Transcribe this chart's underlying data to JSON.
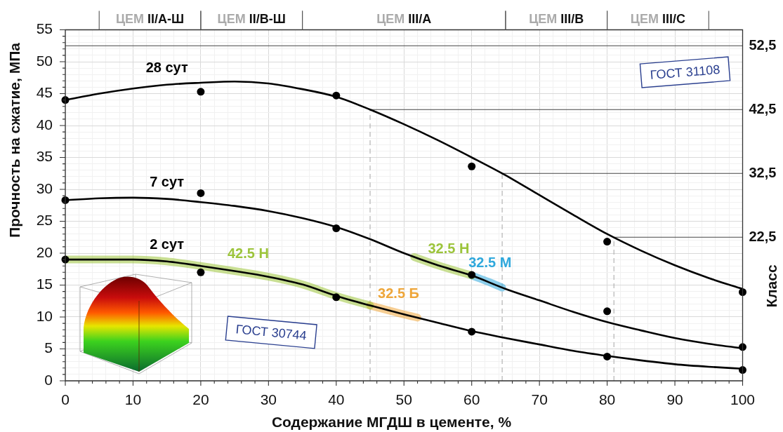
{
  "chart_data": {
    "type": "line",
    "xlabel": "Содержание МГДШ в цементе, %",
    "ylabel": "Прочность на сжатие, МПа",
    "y2label": "Класс",
    "xlim": [
      0,
      100
    ],
    "xticks": [
      0,
      {
        "value": 2,
        "label": null
      },
      {
        "value": 4,
        "label": null
      },
      {
        "value": 6,
        "label": null
      },
      {
        "value": 8,
        "label": null
      },
      10,
      {
        "value": 12,
        "label": null
      },
      {
        "value": 14,
        "label": null
      },
      {
        "value": 16,
        "label": null
      },
      {
        "value": 18,
        "label": null
      },
      20,
      {
        "value": 22,
        "label": null
      },
      {
        "value": 24,
        "label": null
      },
      {
        "value": 26,
        "label": null
      },
      {
        "value": 28,
        "label": null
      },
      30,
      {
        "value": 32,
        "label": null
      },
      {
        "value": 34,
        "label": null
      },
      {
        "value": 36,
        "label": null
      },
      {
        "value": 38,
        "label": null
      },
      40,
      {
        "value": 42,
        "label": null
      },
      {
        "value": 44,
        "label": null
      },
      {
        "value": 46,
        "label": null
      },
      {
        "value": 48,
        "label": null
      },
      50,
      {
        "value": 52,
        "label": null
      },
      {
        "value": 54,
        "label": null
      },
      {
        "value": 56,
        "label": null
      },
      {
        "value": 58,
        "label": null
      },
      60,
      {
        "value": 62,
        "label": null
      },
      {
        "value": 64,
        "label": null
      },
      {
        "value": 66,
        "label": null
      },
      {
        "value": 68,
        "label": null
      },
      70,
      {
        "value": 72,
        "label": null
      },
      {
        "value": 74,
        "label": null
      },
      {
        "value": 76,
        "label": null
      },
      {
        "value": 78,
        "label": null
      },
      80,
      {
        "value": 82,
        "label": null
      },
      {
        "value": 84,
        "label": null
      },
      {
        "value": 86,
        "label": null
      },
      {
        "value": 88,
        "label": null
      },
      90,
      {
        "value": 92,
        "label": null
      },
      {
        "value": 94,
        "label": null
      },
      {
        "value": 96,
        "label": null
      },
      {
        "value": 98,
        "label": null
      },
      100
    ],
    "ylim": [
      0,
      55
    ],
    "yticks": [
      0,
      {
        "value": 1,
        "label": null
      },
      {
        "value": 2,
        "label": null
      },
      {
        "value": 3,
        "label": null
      },
      {
        "value": 4,
        "label": null
      },
      5,
      {
        "value": 6,
        "label": null
      },
      {
        "value": 7,
        "label": null
      },
      {
        "value": 8,
        "label": null
      },
      {
        "value": 9,
        "label": null
      },
      10,
      {
        "value": 11,
        "label": null
      },
      {
        "value": 12,
        "label": null
      },
      {
        "value": 13,
        "label": null
      },
      {
        "value": 14,
        "label": null
      },
      15,
      {
        "value": 16,
        "label": null
      },
      {
        "value": 17,
        "label": null
      },
      {
        "value": 18,
        "label": null
      },
      {
        "value": 19,
        "label": null
      },
      20,
      {
        "value": 21,
        "label": null
      },
      {
        "value": 22,
        "label": null
      },
      {
        "value": 23,
        "label": null
      },
      {
        "value": 24,
        "label": null
      },
      25,
      {
        "value": 26,
        "label": null
      },
      {
        "value": 27,
        "label": null
      },
      {
        "value": 28,
        "label": null
      },
      {
        "value": 29,
        "label": null
      },
      30,
      {
        "value": 31,
        "label": null
      },
      {
        "value": 32,
        "label": null
      },
      {
        "value": 33,
        "label": null
      },
      {
        "value": 34,
        "label": null
      },
      35,
      {
        "value": 36,
        "label": null
      },
      {
        "value": 37,
        "label": null
      },
      {
        "value": 38,
        "label": null
      },
      {
        "value": 39,
        "label": null
      },
      40,
      {
        "value": 41,
        "label": null
      },
      {
        "value": 42,
        "label": null
      },
      {
        "value": 43,
        "label": null
      },
      {
        "value": 44,
        "label": null
      },
      45,
      {
        "value": 46,
        "label": null
      },
      {
        "value": 47,
        "label": null
      },
      {
        "value": 48,
        "label": null
      },
      {
        "value": 49,
        "label": null
      },
      50,
      {
        "value": 51,
        "label": null
      },
      {
        "value": 52,
        "label": null
      },
      {
        "value": 53,
        "label": null
      },
      {
        "value": 54,
        "label": null
      },
      55
    ],
    "y2lim": [
      0,
      55
    ],
    "y2ticks": [
      {
        "value": 22.5,
        "label": "22,5"
      },
      {
        "value": 32.5,
        "label": "32,5"
      },
      {
        "value": 42.5,
        "label": "42,5"
      },
      {
        "value": 52.5,
        "label": "52,5"
      }
    ],
    "grid": true,
    "line_style": "solid",
    "series": [
      {
        "type": "scatter",
        "marker": "circle",
        "color": "#000000",
        "x": [
          0,
          20,
          40,
          60,
          80,
          100
        ],
        "values": [
          44.0,
          45.3,
          44.7,
          33.6,
          21.8,
          13.9
        ]
      },
      {
        "name": "28 сут",
        "color": "#000000",
        "x": [
          0,
          5,
          10,
          15,
          20,
          25,
          30,
          35,
          40,
          45,
          50,
          55,
          60,
          65,
          70,
          75,
          80,
          85,
          90,
          95,
          100
        ],
        "values": [
          44.0,
          45.0,
          45.8,
          46.4,
          46.7,
          46.9,
          46.6,
          45.7,
          44.5,
          42.5,
          40.2,
          37.7,
          35.0,
          32.2,
          29.1,
          26.0,
          23.0,
          20.4,
          18.1,
          16.1,
          14.4
        ]
      },
      {
        "type": "scatter",
        "marker": "circle",
        "color": "#000000",
        "x": [
          0,
          20,
          40,
          60,
          80,
          100
        ],
        "values": [
          28.3,
          29.4,
          23.9,
          16.6,
          10.9,
          5.3
        ]
      },
      {
        "name": "7 сут",
        "color": "#000000",
        "x": [
          0,
          5,
          10,
          15,
          20,
          25,
          30,
          35,
          40,
          45,
          50,
          55,
          60,
          65,
          70,
          75,
          80,
          85,
          90,
          95,
          100
        ],
        "values": [
          28.3,
          28.6,
          28.7,
          28.5,
          28.0,
          27.4,
          26.6,
          25.5,
          24.1,
          22.2,
          20.0,
          18.1,
          16.5,
          14.4,
          12.6,
          10.8,
          9.2,
          7.9,
          6.7,
          5.8,
          5.1
        ]
      },
      {
        "type": "scatter",
        "marker": "circle",
        "color": "#000000",
        "x": [
          0,
          20,
          40,
          60,
          80,
          100
        ],
        "values": [
          19.0,
          17.0,
          13.1,
          7.7,
          3.8,
          1.7
        ]
      },
      {
        "name": "2 сут",
        "color": "#000000",
        "x": [
          0,
          5,
          10,
          15,
          20,
          25,
          30,
          35,
          40,
          45,
          50,
          55,
          60,
          65,
          70,
          75,
          80,
          85,
          90,
          95,
          100
        ],
        "values": [
          19.0,
          19.0,
          19.0,
          18.7,
          18.0,
          17.2,
          16.3,
          15.1,
          13.3,
          11.8,
          10.4,
          9.1,
          7.8,
          6.7,
          5.7,
          4.7,
          3.9,
          3.2,
          2.6,
          2.2,
          1.9
        ]
      },
      {
        "name": "42.5 Н",
        "color": "#9cc43b",
        "x": [
          0,
          5,
          10,
          15,
          20,
          25,
          30,
          35,
          40,
          45
        ],
        "values": [
          19.0,
          19.0,
          19.0,
          18.7,
          18.0,
          17.2,
          16.3,
          15.1,
          13.3,
          11.8
        ]
      },
      {
        "name": "32.5 Б",
        "color": "#eea63a",
        "x": [
          45,
          50,
          52
        ],
        "values": [
          11.8,
          10.4,
          9.9
        ]
      },
      {
        "name": "32.5 Н",
        "color": "#9cc43b",
        "x": [
          51.5,
          55,
          60
        ],
        "values": [
          19.4,
          18.1,
          16.5
        ]
      },
      {
        "name": "32.5 М",
        "color": "#2fa8dc",
        "x": [
          60,
          62.5,
          64.5
        ],
        "values": [
          16.5,
          15.5,
          14.6
        ]
      }
    ],
    "ref_lines": [
      {
        "axis": "y2",
        "value": 52.5,
        "color": "#444444"
      },
      {
        "axis": "y2",
        "value": 42.5,
        "color": "#444444"
      },
      {
        "axis": "y2",
        "value": 32.5,
        "color": "#444444"
      },
      {
        "axis": "y2",
        "value": 22.5,
        "color": "#444444"
      },
      {
        "axis": "x",
        "value": 45,
        "color": "#b4b4b4",
        "line_style": "dashed"
      },
      {
        "axis": "x",
        "value": 64.5,
        "color": "#b4b4b4",
        "line_style": "dashed"
      },
      {
        "axis": "x",
        "value": 81,
        "color": "#b4b4b4",
        "line_style": "dashed"
      }
    ],
    "annotations": [
      "ЦЕМ II/А-Ш",
      "ЦЕМ II/В-Ш",
      "ЦЕМ III/А",
      "ЦЕМ III/В",
      "ЦЕМ III/С",
      "ГОСТ 31108",
      "ГОСТ 30744"
    ]
  }
}
